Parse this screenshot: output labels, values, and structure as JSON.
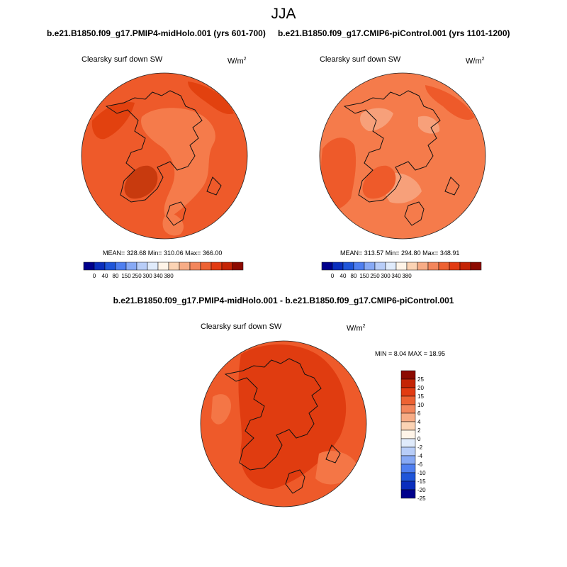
{
  "season": "JJA",
  "panels": {
    "left": {
      "case_title": "b.e21.B1850.f09_g17.PMIP4-midHolo.001 (yrs 601-700)",
      "variable_label": "Clearsky surf down SW",
      "units_base": "W/m",
      "units_exp": "2",
      "stats": "MEAN= 328.68  Min= 310.06  Max= 366.00"
    },
    "right": {
      "case_title": "b.e21.B1850.f09_g17.CMIP6-piControl.001 (yrs 1101-1200)",
      "variable_label": "Clearsky surf down SW",
      "units_base": "W/m",
      "units_exp": "2",
      "stats": "MEAN= 313.57  Min= 294.80  Max= 348.91"
    },
    "diff": {
      "title": "b.e21.B1850.f09_g17.PMIP4-midHolo.001 - b.e21.B1850.f09_g17.CMIP6-piControl.001",
      "variable_label": "Clearsky surf down SW",
      "units_base": "W/m",
      "units_exp": "2",
      "stats": "MIN =   8.04 MAX =  18.95"
    }
  },
  "horizontal_colorbar": {
    "tick_labels": [
      "0",
      "40",
      "80",
      "150",
      "250",
      "300",
      "340",
      "380"
    ],
    "colors": [
      "#00008c",
      "#0a2ebd",
      "#1f55d9",
      "#4f7ff0",
      "#87a9f5",
      "#b8cdf8",
      "#e0ebfb",
      "#fff4e8",
      "#fbd3b4",
      "#f7ac86",
      "#f3865c",
      "#ed6233",
      "#e23b12",
      "#c42405",
      "#8c0a00"
    ]
  },
  "vertical_colorbar": {
    "tick_labels": [
      "25",
      "20",
      "15",
      "10",
      "6",
      "4",
      "2",
      "0",
      "-2",
      "-4",
      "-6",
      "-10",
      "-15",
      "-20",
      "-25"
    ],
    "colors": [
      "#8c0a00",
      "#c42405",
      "#e23b12",
      "#ed6233",
      "#f3865c",
      "#f7ac86",
      "#fbd3b4",
      "#fff4e8",
      "#e0ebfb",
      "#b8cdf8",
      "#87a9f5",
      "#4f7ff0",
      "#1f55d9",
      "#0a2ebd",
      "#00008c"
    ]
  },
  "map_colors": {
    "base": "#ee5a2a",
    "darker": "#e2410f",
    "lighter": "#f57b4b",
    "lightest": "#f7a07a",
    "greenland": "#c83a0e",
    "diff_base": "#ee5a2a",
    "diff_dark": "#e03c10",
    "diff_light": "#f47646"
  }
}
